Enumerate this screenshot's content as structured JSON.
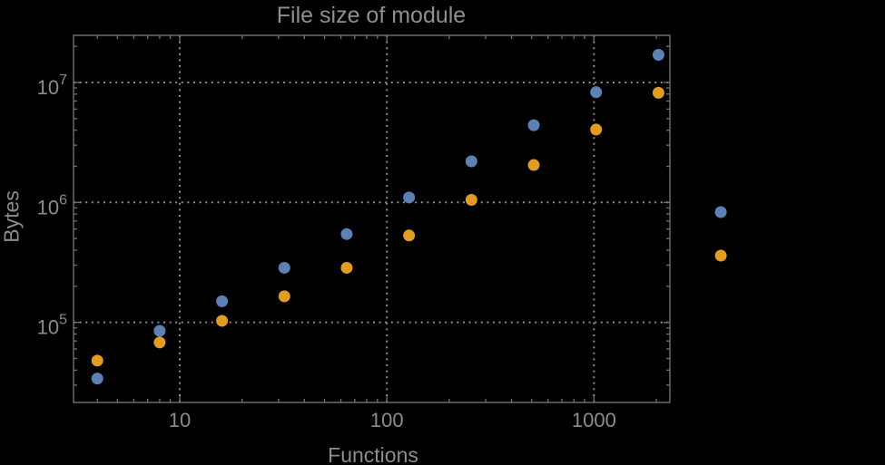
{
  "chart_data": {
    "type": "scatter",
    "title": "File size of module",
    "xlabel": "Functions",
    "ylabel": "Bytes",
    "x_scale": "log",
    "y_scale": "log",
    "xlim": [
      3.07,
      2325
    ],
    "ylim": [
      21500,
      24700000
    ],
    "grid": "major-dotted",
    "legend": "none",
    "x": [
      4,
      8,
      16,
      32,
      64,
      128,
      256,
      512,
      1024,
      2048,
      4096
    ],
    "series": [
      {
        "name": "series-blue",
        "color": "#5E81B5",
        "values": [
          34000,
          85000,
          150000,
          285000,
          545000,
          1100000,
          2200000,
          4400000,
          8300000,
          17000000,
          830000
        ]
      },
      {
        "name": "series-orange",
        "color": "#E19C24",
        "values": [
          48000,
          68000,
          103000,
          165000,
          285000,
          530000,
          1050000,
          2050000,
          4050000,
          8200000,
          360000
        ]
      }
    ],
    "x_major_ticks": [
      10,
      100,
      1000
    ],
    "x_major_labels": [
      "10",
      "100",
      "1000"
    ],
    "y_major_ticks": [
      100000,
      1000000,
      10000000
    ],
    "y_major_mantissa": "10",
    "y_major_exponents": [
      "5",
      "6",
      "7"
    ]
  },
  "style": {
    "background": "#000000",
    "frame_color": "#717171",
    "grid_color": "#8d8d8d",
    "label_color": "#8c8c8c",
    "point_radius": 6.5
  }
}
